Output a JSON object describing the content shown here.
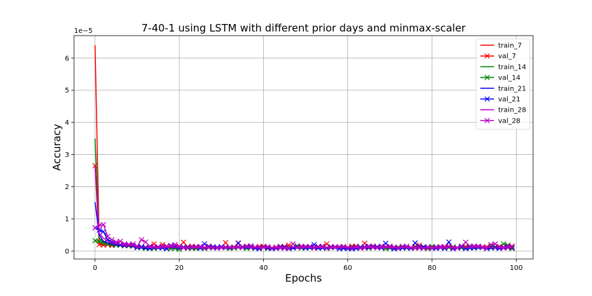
{
  "chart_data": {
    "type": "line",
    "title": "7-40-1 using LSTM with different prior days and minmax-scaler",
    "xlabel": "Epochs",
    "ylabel": "Accuracy",
    "y_offset_text": "1e−5",
    "xlim": [
      -5,
      104
    ],
    "ylim": [
      -0.25,
      6.7
    ],
    "xticks": [
      0,
      20,
      40,
      60,
      80,
      100
    ],
    "yticks": [
      0,
      1,
      2,
      3,
      4,
      5,
      6
    ],
    "grid": true,
    "legend_position": "top-right",
    "y_unit_scale": 1e-05,
    "epochs": 100,
    "series": [
      {
        "name": "train_7",
        "color": "#ff0000",
        "marker": "none",
        "head": [
          6.4,
          0.22,
          0.2,
          0.19,
          0.18,
          0.17,
          0.16,
          0.15,
          0.14,
          0.13
        ],
        "tail_base": 0.1,
        "tail_amp": 0.04,
        "spikes": {}
      },
      {
        "name": "val_7",
        "color": "#ff0000",
        "marker": "x",
        "head": [
          2.65,
          0.2,
          0.18,
          0.2,
          0.17,
          0.22,
          0.18,
          0.16,
          0.2,
          0.15
        ],
        "tail_base": 0.12,
        "tail_amp": 0.07,
        "spikes": {
          "14": 0.22,
          "16": 0.2,
          "21": 0.27,
          "31": 0.26,
          "34": 0.25,
          "46": 0.18,
          "55": 0.22,
          "64": 0.24,
          "70": 0.12,
          "77": 0.18,
          "88": 0.14,
          "94": 0.15,
          "99": 0.15
        }
      },
      {
        "name": "train_14",
        "color": "#008000",
        "marker": "none",
        "head": [
          3.5,
          0.4,
          0.28,
          0.22,
          0.2,
          0.18,
          0.17,
          0.16,
          0.15,
          0.14
        ],
        "tail_base": 0.11,
        "tail_amp": 0.04,
        "spikes": {}
      },
      {
        "name": "val_14",
        "color": "#008000",
        "marker": "x",
        "head": [
          0.32,
          0.3,
          0.25,
          0.22,
          0.2,
          0.18,
          0.18,
          0.17,
          0.16,
          0.15
        ],
        "tail_base": 0.1,
        "tail_amp": 0.06,
        "spikes": {
          "20": 0.05,
          "48": 0.16,
          "57": 0.12,
          "80": 0.14,
          "97": 0.22,
          "98": 0.18
        }
      },
      {
        "name": "train_21",
        "color": "#0000ff",
        "marker": "none",
        "head": [
          1.52,
          0.5,
          0.3,
          0.25,
          0.22,
          0.2,
          0.18,
          0.17,
          0.16,
          0.15
        ],
        "tail_base": 0.1,
        "tail_amp": 0.04,
        "spikes": {}
      },
      {
        "name": "val_21",
        "color": "#0000ff",
        "marker": "x",
        "head": [
          0.72,
          0.65,
          0.6,
          0.35,
          0.28,
          0.22,
          0.2,
          0.18,
          0.18,
          0.17
        ],
        "tail_base": 0.1,
        "tail_amp": 0.07,
        "spikes": {
          "18": 0.17,
          "26": 0.22,
          "34": 0.24,
          "52": 0.2,
          "69": 0.24,
          "76": 0.25,
          "84": 0.28,
          "92": 0.12
        }
      },
      {
        "name": "train_28",
        "color": "#bf00bf",
        "marker": "none",
        "head": [
          2.62,
          0.55,
          0.4,
          0.3,
          0.25,
          0.22,
          0.2,
          0.19,
          0.18,
          0.17
        ],
        "tail_base": 0.11,
        "tail_amp": 0.04,
        "spikes": {}
      },
      {
        "name": "val_28",
        "color": "#bf00bf",
        "marker": "x",
        "head": [
          0.72,
          0.8,
          0.82,
          0.45,
          0.35,
          0.28,
          0.3,
          0.22,
          0.2,
          0.22
        ],
        "tail_base": 0.12,
        "tail_amp": 0.07,
        "spikes": {
          "11": 0.35,
          "12": 0.28,
          "19": 0.2,
          "37": 0.16,
          "47": 0.22,
          "59": 0.14,
          "74": 0.15,
          "88": 0.27,
          "94": 0.2,
          "95": 0.22
        }
      }
    ]
  }
}
